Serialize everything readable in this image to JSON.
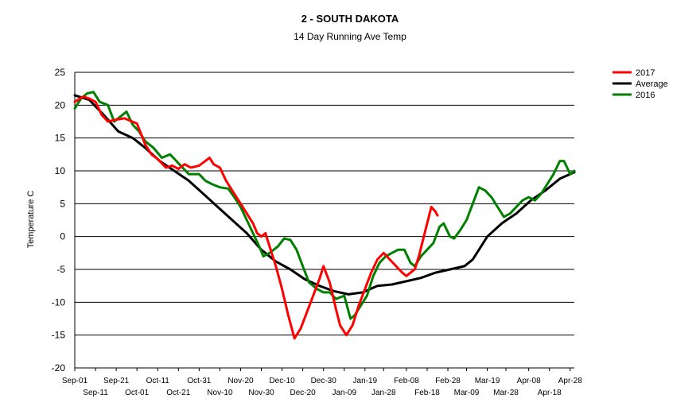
{
  "chart_data": {
    "type": "line",
    "title": "2 - SOUTH DAKOTA",
    "subtitle": "14 Day Running Ave Temp",
    "ylabel": "Temperature C",
    "xlabel": "",
    "ylim": [
      -20,
      25
    ],
    "yticks": [
      25,
      20,
      15,
      10,
      5,
      0,
      -5,
      -10,
      -15,
      -20
    ],
    "grid": "horizontal",
    "legend_position": "top-right",
    "x_tick_labels": [
      "Sep-01",
      "Sep-11",
      "Sep-21",
      "Oct-01",
      "Oct-11",
      "Oct-21",
      "Oct-31",
      "Nov-10",
      "Nov-20",
      "Nov-30",
      "Dec-10",
      "Dec-20",
      "Dec-30",
      "Jan-09",
      "Jan-19",
      "Jan-28",
      "Feb-08",
      "Feb-18",
      "Feb-28",
      "Mar-09",
      "Mar-19",
      "Mar-28",
      "Apr-08",
      "Apr-18",
      "Apr-28"
    ],
    "series": [
      {
        "name": "2017",
        "color": "#ff0000",
        "points": [
          [
            "Sep-01",
            20.5
          ],
          [
            "Sep-05",
            21.3
          ],
          [
            "Sep-08",
            21.0
          ],
          [
            "Sep-11",
            20.5
          ],
          [
            "Sep-14",
            18.5
          ],
          [
            "Sep-17",
            17.5
          ],
          [
            "Sep-21",
            17.8
          ],
          [
            "Sep-25",
            18.0
          ],
          [
            "Oct-01",
            17.2
          ],
          [
            "Oct-05",
            14.0
          ],
          [
            "Oct-08",
            12.5
          ],
          [
            "Oct-11",
            11.8
          ],
          [
            "Oct-15",
            10.5
          ],
          [
            "Oct-18",
            10.8
          ],
          [
            "Oct-21",
            10.3
          ],
          [
            "Oct-24",
            11.0
          ],
          [
            "Oct-27",
            10.5
          ],
          [
            "Oct-31",
            10.8
          ],
          [
            "Nov-03",
            11.5
          ],
          [
            "Nov-05",
            12.0
          ],
          [
            "Nov-07",
            11.0
          ],
          [
            "Nov-10",
            10.5
          ],
          [
            "Nov-13",
            8.5
          ],
          [
            "Nov-17",
            6.5
          ],
          [
            "Nov-20",
            5.0
          ],
          [
            "Nov-23",
            3.5
          ],
          [
            "Nov-26",
            2.0
          ],
          [
            "Nov-28",
            0.5
          ],
          [
            "Nov-30",
            0.0
          ],
          [
            "Dec-02",
            0.5
          ],
          [
            "Dec-04",
            -1.5
          ],
          [
            "Dec-07",
            -4.5
          ],
          [
            "Dec-10",
            -8.0
          ],
          [
            "Dec-13",
            -12.0
          ],
          [
            "Dec-16",
            -15.5
          ],
          [
            "Dec-19",
            -14.0
          ],
          [
            "Dec-22",
            -11.5
          ],
          [
            "Dec-25",
            -9.0
          ],
          [
            "Dec-28",
            -6.5
          ],
          [
            "Dec-30",
            -4.5
          ],
          [
            "Jan-02",
            -7.0
          ],
          [
            "Jan-05",
            -11.0
          ],
          [
            "Jan-07",
            -13.5
          ],
          [
            "Jan-10",
            -15.0
          ],
          [
            "Jan-13",
            -13.5
          ],
          [
            "Jan-16",
            -10.5
          ],
          [
            "Jan-19",
            -8.0
          ],
          [
            "Jan-22",
            -5.5
          ],
          [
            "Jan-25",
            -3.5
          ],
          [
            "Jan-28",
            -2.5
          ],
          [
            "Jan-31",
            -3.5
          ],
          [
            "Feb-03",
            -4.5
          ],
          [
            "Feb-06",
            -5.5
          ],
          [
            "Feb-08",
            -6.0
          ],
          [
            "Feb-10",
            -5.5
          ],
          [
            "Feb-12",
            -5.0
          ],
          [
            "Feb-14",
            -3.0
          ],
          [
            "Feb-16",
            -0.5
          ],
          [
            "Feb-18",
            2.0
          ],
          [
            "Feb-20",
            4.5
          ],
          [
            "Feb-22",
            3.8
          ],
          [
            "Feb-23",
            3.2
          ]
        ]
      },
      {
        "name": "Average",
        "color": "#000000",
        "points": [
          [
            "Sep-01",
            21.5
          ],
          [
            "Sep-08",
            20.8
          ],
          [
            "Sep-15",
            18.5
          ],
          [
            "Sep-22",
            16.0
          ],
          [
            "Sep-29",
            15.0
          ],
          [
            "Oct-05",
            13.5
          ],
          [
            "Oct-12",
            11.5
          ],
          [
            "Oct-19",
            10.0
          ],
          [
            "Oct-26",
            8.5
          ],
          [
            "Nov-02",
            6.5
          ],
          [
            "Nov-09",
            4.5
          ],
          [
            "Nov-16",
            2.5
          ],
          [
            "Nov-23",
            0.5
          ],
          [
            "Nov-30",
            -2.0
          ],
          [
            "Dec-07",
            -3.8
          ],
          [
            "Dec-14",
            -5.0
          ],
          [
            "Dec-21",
            -6.5
          ],
          [
            "Dec-28",
            -7.5
          ],
          [
            "Jan-04",
            -8.3
          ],
          [
            "Jan-11",
            -8.8
          ],
          [
            "Jan-18",
            -8.5
          ],
          [
            "Jan-25",
            -7.5
          ],
          [
            "Feb-01",
            -7.3
          ],
          [
            "Feb-08",
            -6.8
          ],
          [
            "Feb-15",
            -6.3
          ],
          [
            "Feb-22",
            -5.5
          ],
          [
            "Mar-01",
            -5.0
          ],
          [
            "Mar-08",
            -4.5
          ],
          [
            "Mar-12",
            -3.5
          ],
          [
            "Mar-19",
            0.0
          ],
          [
            "Mar-26",
            2.0
          ],
          [
            "Apr-02",
            3.5
          ],
          [
            "Apr-09",
            5.5
          ],
          [
            "Apr-16",
            7.0
          ],
          [
            "Apr-23",
            8.8
          ],
          [
            "Apr-30",
            9.8
          ]
        ]
      },
      {
        "name": "2016",
        "color": "#008000",
        "points": [
          [
            "Sep-01",
            19.5
          ],
          [
            "Sep-04",
            21.0
          ],
          [
            "Sep-07",
            21.8
          ],
          [
            "Sep-10",
            22.0
          ],
          [
            "Sep-13",
            20.5
          ],
          [
            "Sep-17",
            20.0
          ],
          [
            "Sep-20",
            17.5
          ],
          [
            "Sep-24",
            18.5
          ],
          [
            "Sep-26",
            19.0
          ],
          [
            "Sep-29",
            17.0
          ],
          [
            "Oct-02",
            16.0
          ],
          [
            "Oct-05",
            14.5
          ],
          [
            "Oct-09",
            13.5
          ],
          [
            "Oct-13",
            12.0
          ],
          [
            "Oct-17",
            12.5
          ],
          [
            "Oct-20",
            11.5
          ],
          [
            "Oct-23",
            10.5
          ],
          [
            "Oct-26",
            9.5
          ],
          [
            "Oct-31",
            9.5
          ],
          [
            "Nov-03",
            8.5
          ],
          [
            "Nov-06",
            8.0
          ],
          [
            "Nov-10",
            7.5
          ],
          [
            "Nov-14",
            7.3
          ],
          [
            "Nov-17",
            6.0
          ],
          [
            "Nov-20",
            4.5
          ],
          [
            "Nov-23",
            2.5
          ],
          [
            "Nov-26",
            0.5
          ],
          [
            "Nov-29",
            -1.5
          ],
          [
            "Dec-01",
            -3.0
          ],
          [
            "Dec-04",
            -2.5
          ],
          [
            "Dec-08",
            -1.5
          ],
          [
            "Dec-11",
            -0.3
          ],
          [
            "Dec-14",
            -0.5
          ],
          [
            "Dec-17",
            -2.0
          ],
          [
            "Dec-20",
            -4.5
          ],
          [
            "Dec-23",
            -7.0
          ],
          [
            "Dec-27",
            -8.0
          ],
          [
            "Dec-30",
            -8.5
          ],
          [
            "Jan-02",
            -8.5
          ],
          [
            "Jan-05",
            -9.5
          ],
          [
            "Jan-09",
            -9.0
          ],
          [
            "Jan-12",
            -12.5
          ],
          [
            "Jan-14",
            -12.0
          ],
          [
            "Jan-17",
            -10.5
          ],
          [
            "Jan-20",
            -9.0
          ],
          [
            "Jan-23",
            -6.0
          ],
          [
            "Jan-26",
            -4.0
          ],
          [
            "Jan-29",
            -3.0
          ],
          [
            "Feb-01",
            -2.5
          ],
          [
            "Feb-04",
            -2.0
          ],
          [
            "Feb-07",
            -2.0
          ],
          [
            "Feb-10",
            -4.0
          ],
          [
            "Feb-12",
            -4.5
          ],
          [
            "Feb-15",
            -3.0
          ],
          [
            "Feb-18",
            -2.0
          ],
          [
            "Feb-21",
            -1.0
          ],
          [
            "Feb-24",
            1.5
          ],
          [
            "Feb-26",
            2.0
          ],
          [
            "Mar-01",
            0.0
          ],
          [
            "Mar-03",
            -0.3
          ],
          [
            "Mar-06",
            1.0
          ],
          [
            "Mar-09",
            2.5
          ],
          [
            "Mar-12",
            5.0
          ],
          [
            "Mar-15",
            7.5
          ],
          [
            "Mar-18",
            7.0
          ],
          [
            "Mar-21",
            6.0
          ],
          [
            "Mar-24",
            4.5
          ],
          [
            "Mar-27",
            3.0
          ],
          [
            "Mar-30",
            3.5
          ],
          [
            "Apr-02",
            4.5
          ],
          [
            "Apr-05",
            5.5
          ],
          [
            "Apr-08",
            6.0
          ],
          [
            "Apr-11",
            5.5
          ],
          [
            "Apr-14",
            6.5
          ],
          [
            "Apr-17",
            8.0
          ],
          [
            "Apr-20",
            9.5
          ],
          [
            "Apr-23",
            11.5
          ],
          [
            "Apr-25",
            11.5
          ],
          [
            "Apr-28",
            9.5
          ],
          [
            "Apr-30",
            10.0
          ]
        ]
      }
    ]
  }
}
